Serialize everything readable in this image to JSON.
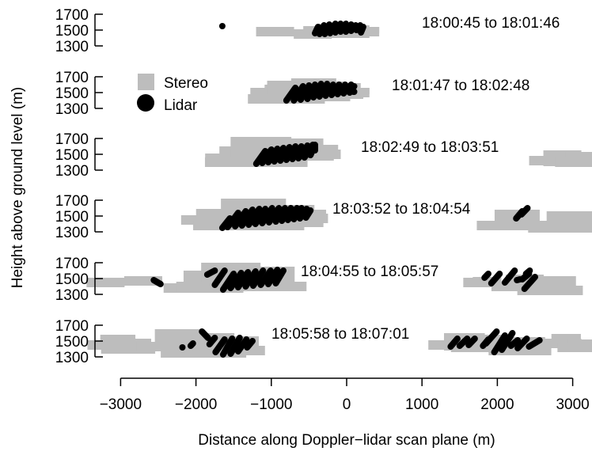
{
  "chart_data": {
    "type": "scatter",
    "xlabel": "Distance along Doppler−lidar scan plane (m)",
    "ylabel": "Height above ground level (m)",
    "x_ticks": [
      -3000,
      -2000,
      -1000,
      0,
      1000,
      2000,
      3000
    ],
    "x_tick_labels": [
      "−3000",
      "−2000",
      "−1000",
      "0",
      "1000",
      "2000",
      "3000"
    ],
    "y_ticks": [
      1300,
      1500,
      1700
    ],
    "xlim": [
      -3200,
      3200
    ],
    "ylim": [
      1250,
      1750
    ],
    "legend": {
      "position": "upper-left",
      "entries": [
        {
          "label": "Stereo",
          "marker": "square",
          "color": "#bdbdbd"
        },
        {
          "label": "Lidar",
          "marker": "circle",
          "color": "#000000"
        }
      ]
    },
    "colors": {
      "stereo": "#bdbdbd",
      "lidar": "#000000"
    },
    "panels": [
      {
        "label": "18:00:45 to 18:01:46",
        "stereo": [
          [
            -450,
            1420,
            1450,
            1550
          ],
          [
            -250,
            1450,
            1480,
            1580
          ],
          [
            -150,
            1430,
            1460,
            1570
          ],
          [
            50,
            1440,
            1460,
            1560
          ],
          [
            180,
            1460,
            1480,
            1540
          ],
          [
            -950,
            1450,
            1480,
            1500
          ]
        ],
        "lidar": [
          [
            -420,
            1460,
            -380,
            1540
          ],
          [
            -360,
            1450,
            -300,
            1560
          ],
          [
            -290,
            1450,
            -230,
            1570
          ],
          [
            -220,
            1460,
            -150,
            1580
          ],
          [
            -150,
            1470,
            -80,
            1580
          ],
          [
            -80,
            1480,
            -10,
            1580
          ],
          [
            -10,
            1480,
            60,
            1570
          ],
          [
            60,
            1490,
            120,
            1560
          ],
          [
            130,
            1500,
            180,
            1560
          ],
          [
            190,
            1470,
            220,
            1540
          ],
          [
            -1650,
            1550,
            -1650,
            1550
          ]
        ]
      },
      {
        "label": "18:01:47 to 18:02:48",
        "stereo": [
          [
            -900,
            1400,
            1500,
            1600
          ],
          [
            -800,
            1380,
            1420,
            1650
          ],
          [
            -500,
            1430,
            1480,
            1680
          ],
          [
            -350,
            1430,
            1450,
            1640
          ],
          [
            -100,
            1450,
            1480,
            1620
          ],
          [
            50,
            1480,
            1500,
            1560
          ]
        ],
        "lidar": [
          [
            -800,
            1400,
            -680,
            1560
          ],
          [
            -700,
            1400,
            -580,
            1580
          ],
          [
            -610,
            1410,
            -500,
            1590
          ],
          [
            -520,
            1420,
            -420,
            1600
          ],
          [
            -440,
            1440,
            -340,
            1610
          ],
          [
            -360,
            1450,
            -260,
            1610
          ],
          [
            -280,
            1460,
            -180,
            1600
          ],
          [
            -200,
            1470,
            -100,
            1600
          ],
          [
            -120,
            1480,
            -20,
            1600
          ],
          [
            -40,
            1490,
            60,
            1600
          ],
          [
            40,
            1500,
            100,
            1580
          ],
          [
            90,
            1510,
            100,
            1510
          ]
        ]
      },
      {
        "label": "18:02:49 to 18:03:51",
        "stereo": [
          [
            -1500,
            1400,
            1450,
            1600
          ],
          [
            -1200,
            1360,
            1400,
            1720
          ],
          [
            -700,
            1420,
            1480,
            1700
          ],
          [
            -400,
            1450,
            1500,
            1620
          ],
          [
            2800,
            1350,
            1420,
            1550
          ],
          [
            3050,
            1380,
            1400,
            1530
          ]
        ],
        "lidar": [
          [
            -1200,
            1380,
            -1080,
            1540
          ],
          [
            -1120,
            1390,
            -1000,
            1560
          ],
          [
            -1040,
            1400,
            -920,
            1570
          ],
          [
            -960,
            1410,
            -840,
            1580
          ],
          [
            -880,
            1420,
            -760,
            1590
          ],
          [
            -800,
            1430,
            -680,
            1600
          ],
          [
            -720,
            1440,
            -600,
            1600
          ],
          [
            -640,
            1450,
            -520,
            1610
          ],
          [
            -560,
            1460,
            -450,
            1620
          ],
          [
            -480,
            1490,
            -420,
            1620
          ],
          [
            -420,
            1550,
            -420,
            1600
          ]
        ]
      },
      {
        "label": "18:03:52 to 18:04:54",
        "stereo": [
          [
            -1800,
            1380,
            1450,
            1590
          ],
          [
            -1300,
            1330,
            1380,
            1720
          ],
          [
            -800,
            1380,
            1420,
            1640
          ],
          [
            -550,
            1420,
            1470,
            1580
          ],
          [
            2200,
            1330,
            1380,
            1580
          ],
          [
            2900,
            1300,
            1350,
            1560
          ]
        ],
        "lidar": [
          [
            -1650,
            1350,
            -1550,
            1470
          ],
          [
            -1580,
            1360,
            -1440,
            1540
          ],
          [
            -1480,
            1370,
            -1340,
            1560
          ],
          [
            -1390,
            1380,
            -1250,
            1580
          ],
          [
            -1300,
            1390,
            -1160,
            1590
          ],
          [
            -1210,
            1400,
            -1080,
            1590
          ],
          [
            -1120,
            1410,
            -990,
            1600
          ],
          [
            -1030,
            1420,
            -900,
            1600
          ],
          [
            -940,
            1430,
            -820,
            1600
          ],
          [
            -860,
            1440,
            -740,
            1600
          ],
          [
            -780,
            1450,
            -660,
            1600
          ],
          [
            -700,
            1460,
            -600,
            1600
          ],
          [
            -620,
            1470,
            -530,
            1590
          ],
          [
            -540,
            1480,
            -480,
            1570
          ],
          [
            2250,
            1470,
            2330,
            1560
          ],
          [
            2320,
            1520,
            2400,
            1600
          ]
        ]
      },
      {
        "label": "18:04:55 to 18:05:57",
        "stereo": [
          [
            -3200,
            1400,
            1450,
            1500
          ],
          [
            -1900,
            1320,
            1380,
            1600
          ],
          [
            -1600,
            1350,
            1400,
            1700
          ],
          [
            -1100,
            1350,
            1400,
            1650
          ],
          [
            1800,
            1400,
            1450,
            1520
          ],
          [
            2300,
            1350,
            1400,
            1550
          ],
          [
            2700,
            1300,
            1350,
            1530
          ],
          [
            -2700,
            1450,
            1470,
            1500
          ]
        ],
        "lidar": [
          [
            -1850,
            1550,
            -1750,
            1600
          ],
          [
            -1750,
            1420,
            -1620,
            1600
          ],
          [
            -1640,
            1360,
            -1500,
            1560
          ],
          [
            -1540,
            1380,
            -1400,
            1570
          ],
          [
            -1440,
            1390,
            -1310,
            1580
          ],
          [
            -1340,
            1400,
            -1210,
            1590
          ],
          [
            -1240,
            1410,
            -1110,
            1600
          ],
          [
            -1140,
            1420,
            -1010,
            1600
          ],
          [
            -1040,
            1430,
            -920,
            1610
          ],
          [
            -940,
            1440,
            -840,
            1600
          ],
          [
            -2560,
            1480,
            -2470,
            1430
          ],
          [
            1830,
            1510,
            1880,
            1560
          ],
          [
            1920,
            1440,
            2030,
            1560
          ],
          [
            2100,
            1450,
            2230,
            1600
          ],
          [
            2260,
            1480,
            2300,
            1490
          ],
          [
            2330,
            1490,
            2420,
            1560
          ],
          [
            2380,
            1560,
            2430,
            1600
          ],
          [
            2360,
            1370,
            2500,
            1520
          ]
        ]
      },
      {
        "label": "18:05:58 to 18:07:01",
        "stereo": [
          [
            -3100,
            1400,
            1450,
            1580
          ],
          [
            -2900,
            1340,
            1400,
            1530
          ],
          [
            -2300,
            1390,
            1430,
            1650
          ],
          [
            -1900,
            1300,
            1350,
            1600
          ],
          [
            -1500,
            1340,
            1380,
            1560
          ],
          [
            1500,
            1380,
            1450,
            1600
          ],
          [
            1800,
            1360,
            1420,
            1580
          ],
          [
            2300,
            1330,
            1380,
            1550
          ],
          [
            2850,
            1450,
            1470,
            1590
          ],
          [
            3050,
            1400,
            1420,
            1520
          ]
        ],
        "lidar": [
          [
            -2180,
            1420,
            -2180,
            1420
          ],
          [
            -2070,
            1440,
            -2040,
            1470
          ],
          [
            -1920,
            1620,
            -1840,
            1540
          ],
          [
            -1820,
            1460,
            -1750,
            1540
          ],
          [
            -1740,
            1360,
            -1620,
            1520
          ],
          [
            -1640,
            1330,
            -1520,
            1530
          ],
          [
            -1540,
            1340,
            -1420,
            1540
          ],
          [
            -1440,
            1370,
            -1330,
            1520
          ],
          [
            -1320,
            1420,
            -1250,
            1500
          ],
          [
            1380,
            1430,
            1470,
            1530
          ],
          [
            1500,
            1440,
            1600,
            1530
          ],
          [
            1620,
            1450,
            1700,
            1530
          ],
          [
            1810,
            1440,
            1880,
            1520
          ],
          [
            1850,
            1470,
            1990,
            1620
          ],
          [
            1960,
            1360,
            2100,
            1570
          ],
          [
            2060,
            1390,
            2200,
            1600
          ],
          [
            2180,
            1440,
            2270,
            1510
          ],
          [
            2270,
            1410,
            2390,
            1530
          ],
          [
            2420,
            1430,
            2560,
            1510
          ]
        ]
      }
    ]
  }
}
